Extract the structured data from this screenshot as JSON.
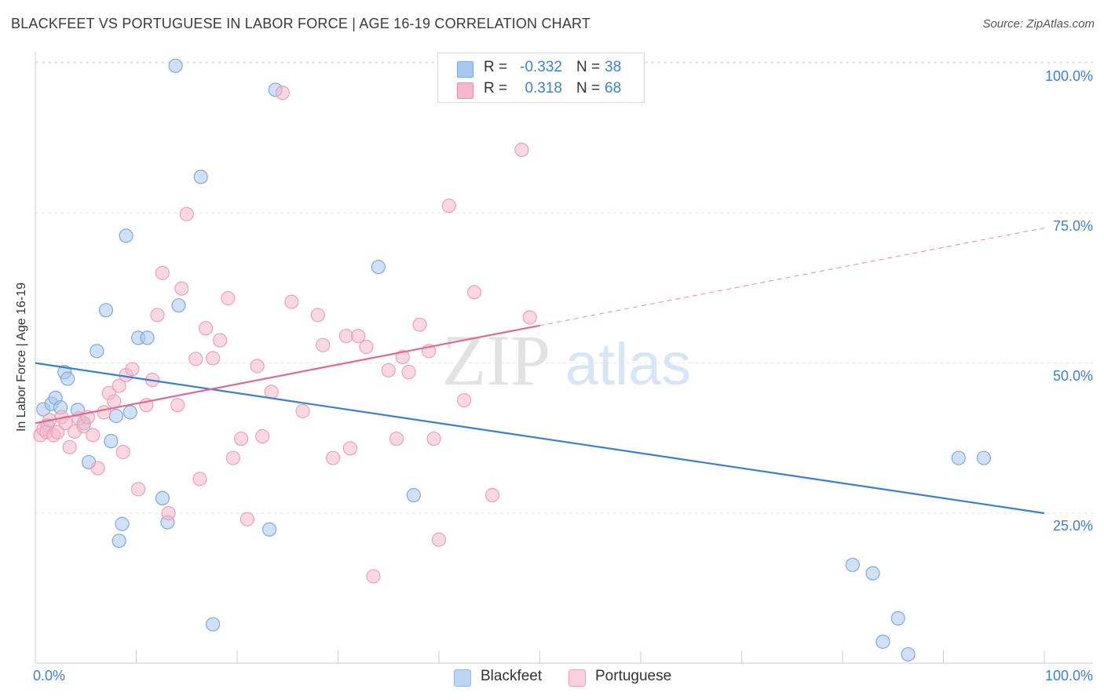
{
  "header": {
    "title": "BLACKFEET VS PORTUGUESE IN LABOR FORCE | AGE 16-19 CORRELATION CHART",
    "source": "Source: ZipAtlas.com"
  },
  "stats": [
    {
      "r_label": "R =",
      "r_value": "-0.332",
      "n_label": "N =",
      "n_value": "38",
      "color": "#a9c8f0"
    },
    {
      "r_label": "R =",
      "r_value": "0.318",
      "n_label": "N =",
      "n_value": "68",
      "color": "#f6b8ca"
    }
  ],
  "watermark": {
    "zip": "ZIP",
    "atlas": "atlas"
  },
  "legend": [
    {
      "name": "Blackfeet",
      "color": "#a9c8f0"
    },
    {
      "name": "Portuguese",
      "color": "#f6b8ca"
    }
  ],
  "chart_data": {
    "type": "scatter",
    "title": "BLACKFEET VS PORTUGUESE IN LABOR FORCE | AGE 16-19 CORRELATION CHART",
    "xlabel": "",
    "ylabel": "In Labor Force | Age 16-19",
    "xlim": [
      0,
      100
    ],
    "ylim": [
      0,
      102
    ],
    "x_tick_labels": [
      "0.0%",
      "100.0%"
    ],
    "y_tick_labels": [
      "100.0%",
      "75.0%",
      "50.0%",
      "25.0%"
    ],
    "y_ticks": [
      100,
      75,
      50,
      25
    ],
    "grid": true,
    "legend_position": "bottom-center",
    "series": [
      {
        "name": "Blackfeet",
        "color": "#a9c8f0",
        "line_color": "#3b7dd8",
        "trend": {
          "x": [
            0,
            100
          ],
          "y": [
            50.0,
            25.0
          ],
          "dashed_from": null
        },
        "points": [
          [
            0.8,
            42.3
          ],
          [
            1.2,
            39.6
          ],
          [
            1.6,
            43.2
          ],
          [
            2.0,
            44.2
          ],
          [
            2.5,
            42.6
          ],
          [
            2.9,
            48.5
          ],
          [
            3.2,
            47.4
          ],
          [
            4.2,
            42.2
          ],
          [
            4.8,
            40.0
          ],
          [
            5.3,
            33.5
          ],
          [
            6.1,
            52.0
          ],
          [
            7.0,
            58.8
          ],
          [
            7.5,
            37.0
          ],
          [
            8.0,
            41.2
          ],
          [
            8.3,
            20.4
          ],
          [
            8.6,
            23.2
          ],
          [
            9.0,
            71.2
          ],
          [
            9.4,
            41.8
          ],
          [
            10.2,
            54.2
          ],
          [
            11.1,
            54.2
          ],
          [
            12.6,
            27.5
          ],
          [
            13.1,
            23.5
          ],
          [
            13.9,
            99.5
          ],
          [
            14.2,
            59.6
          ],
          [
            16.4,
            81.0
          ],
          [
            17.6,
            6.5
          ],
          [
            23.2,
            22.3
          ],
          [
            23.8,
            95.5
          ],
          [
            34.0,
            66.0
          ],
          [
            37.5,
            28.0
          ],
          [
            47.0,
            99.5
          ],
          [
            81.0,
            16.4
          ],
          [
            83.0,
            15.0
          ],
          [
            84.0,
            3.6
          ],
          [
            85.5,
            7.5
          ],
          [
            86.5,
            1.5
          ],
          [
            91.5,
            34.2
          ],
          [
            94.0,
            34.2
          ]
        ]
      },
      {
        "name": "Portuguese",
        "color": "#f6b8ca",
        "line_color": "#e2688e",
        "trend": {
          "x": [
            0,
            100
          ],
          "y": [
            40.0,
            72.5
          ],
          "dashed_from": 50
        },
        "points": [
          [
            0.5,
            38.0
          ],
          [
            0.8,
            39.0
          ],
          [
            1.1,
            38.5
          ],
          [
            1.4,
            40.5
          ],
          [
            1.8,
            38.0
          ],
          [
            2.2,
            38.5
          ],
          [
            2.6,
            41.0
          ],
          [
            3.0,
            40.0
          ],
          [
            3.4,
            36.0
          ],
          [
            3.9,
            38.6
          ],
          [
            4.3,
            40.8
          ],
          [
            4.8,
            39.5
          ],
          [
            5.2,
            41.0
          ],
          [
            5.7,
            38.0
          ],
          [
            6.2,
            32.5
          ],
          [
            6.8,
            41.8
          ],
          [
            7.3,
            45.0
          ],
          [
            7.8,
            43.6
          ],
          [
            8.3,
            46.2
          ],
          [
            8.7,
            35.2
          ],
          [
            9.0,
            48.0
          ],
          [
            9.6,
            49.0
          ],
          [
            10.2,
            29.0
          ],
          [
            11.0,
            43.0
          ],
          [
            11.6,
            47.2
          ],
          [
            12.1,
            58.0
          ],
          [
            12.6,
            65.0
          ],
          [
            13.2,
            25.0
          ],
          [
            14.1,
            43.0
          ],
          [
            14.5,
            62.4
          ],
          [
            15.0,
            74.8
          ],
          [
            15.9,
            50.7
          ],
          [
            16.3,
            30.7
          ],
          [
            16.9,
            55.8
          ],
          [
            17.6,
            50.8
          ],
          [
            18.3,
            53.8
          ],
          [
            19.1,
            60.8
          ],
          [
            19.6,
            34.2
          ],
          [
            20.4,
            37.4
          ],
          [
            21.0,
            24.0
          ],
          [
            22.0,
            49.5
          ],
          [
            22.5,
            37.8
          ],
          [
            23.4,
            45.2
          ],
          [
            24.5,
            95.0
          ],
          [
            25.4,
            60.2
          ],
          [
            26.5,
            42.0
          ],
          [
            28.0,
            58.0
          ],
          [
            28.5,
            53.0
          ],
          [
            29.5,
            34.2
          ],
          [
            30.8,
            54.5
          ],
          [
            31.2,
            35.8
          ],
          [
            32.0,
            54.5
          ],
          [
            32.8,
            52.7
          ],
          [
            33.5,
            14.5
          ],
          [
            35.0,
            48.8
          ],
          [
            35.8,
            37.4
          ],
          [
            36.4,
            51.0
          ],
          [
            37.0,
            48.5
          ],
          [
            38.1,
            56.4
          ],
          [
            39.0,
            52.0
          ],
          [
            39.5,
            37.4
          ],
          [
            40.0,
            20.6
          ],
          [
            41.0,
            76.2
          ],
          [
            42.5,
            43.8
          ],
          [
            43.5,
            61.8
          ],
          [
            45.3,
            28.0
          ],
          [
            48.2,
            85.5
          ],
          [
            49.0,
            57.6
          ]
        ]
      }
    ]
  }
}
